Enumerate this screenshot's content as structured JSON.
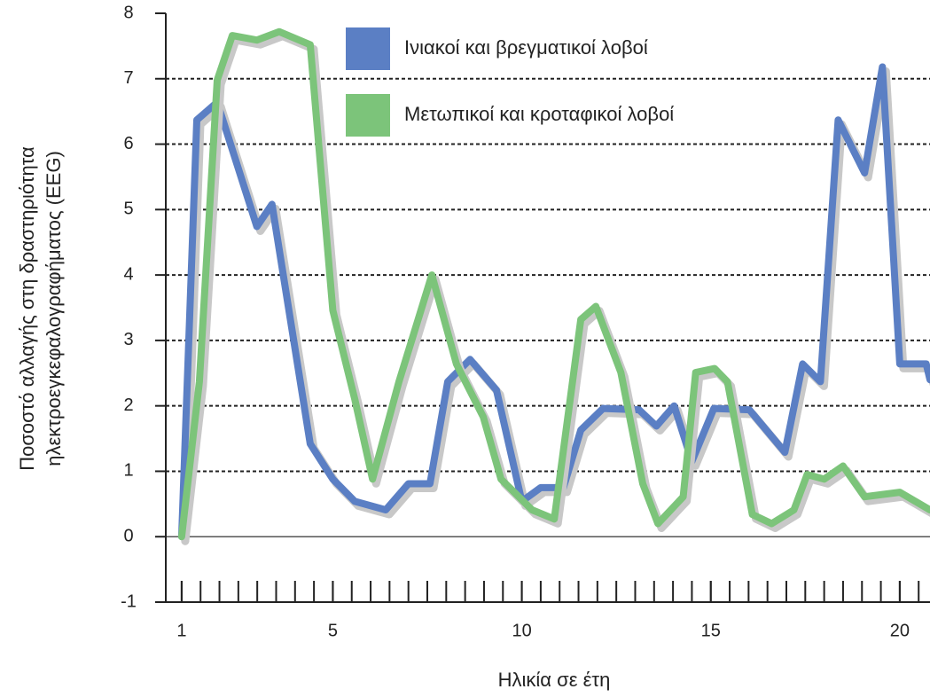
{
  "chart_data": {
    "type": "line",
    "x_label": "Ηλικία σε έτη",
    "y_label": [
      "Ποσοστό αλλαγής στη δραστηριότητα",
      "ηλεκτροεγκεφαλογραφήματος (EEG)"
    ],
    "xlim": [
      0.58,
      20.8
    ],
    "ylim": [
      -1,
      8
    ],
    "xticks": [
      1,
      5,
      10,
      15,
      20
    ],
    "xminorticks": [
      1,
      1.5,
      2,
      2.5,
      3,
      3.5,
      4,
      4.5,
      5,
      5.5,
      6,
      6.5,
      7,
      7.5,
      8,
      8.5,
      9,
      9.5,
      10,
      10.5,
      11,
      11.5,
      12,
      12.5,
      13,
      13.5,
      14,
      14.5,
      15,
      15.5,
      16,
      16.5,
      17,
      17.5,
      18,
      18.5,
      19,
      19.5,
      20,
      20.5
    ],
    "yticks": [
      -1,
      0,
      1,
      2,
      3,
      4,
      5,
      6,
      7,
      8
    ],
    "grid": true,
    "series": [
      {
        "name": "Ινιακοί και βρεγματικοί λοβοί",
        "color": "#5b7fc4",
        "x": [
          1.0,
          1.4,
          1.94,
          2.99,
          3.39,
          4.4,
          5.0,
          5.58,
          6.4,
          7.0,
          7.57,
          8.04,
          8.63,
          9.33,
          10.0,
          10.5,
          11.1,
          11.56,
          12.15,
          13.1,
          13.56,
          14.03,
          14.5,
          15.08,
          16.02,
          16.96,
          17.43,
          17.9,
          18.37,
          19.07,
          19.54,
          20.0,
          20.7,
          20.8
        ],
        "values": [
          0,
          6.37,
          6.64,
          4.74,
          5.08,
          1.42,
          0.88,
          0.54,
          0.41,
          0.81,
          0.81,
          2.37,
          2.71,
          2.24,
          0.54,
          0.75,
          0.75,
          1.63,
          1.96,
          1.94,
          1.69,
          2.0,
          1.15,
          1.96,
          1.94,
          1.29,
          2.64,
          2.37,
          6.37,
          5.56,
          7.18,
          2.64,
          2.64,
          2.4
        ]
      },
      {
        "name": "Μετωπικοί και κροταφικοί λοβοί",
        "color": "#7cc47a",
        "x": [
          1.0,
          1.47,
          1.94,
          2.34,
          2.99,
          3.58,
          4.4,
          5.0,
          5.58,
          6.05,
          6.75,
          7.62,
          8.27,
          8.98,
          9.45,
          10.27,
          10.86,
          11.56,
          11.96,
          12.62,
          13.2,
          13.6,
          14.27,
          14.6,
          15.1,
          15.44,
          16.1,
          16.61,
          17.2,
          17.55,
          18.0,
          18.5,
          19.07,
          20.0,
          20.8
        ],
        "values": [
          0,
          2.37,
          6.98,
          7.66,
          7.59,
          7.72,
          7.52,
          3.46,
          2.1,
          0.88,
          2.37,
          4.0,
          2.64,
          1.83,
          0.88,
          0.41,
          0.27,
          3.32,
          3.52,
          2.51,
          0.81,
          0.2,
          0.61,
          2.51,
          2.57,
          2.37,
          0.34,
          0.2,
          0.41,
          0.95,
          0.88,
          1.08,
          0.61,
          0.68,
          0.41
        ]
      }
    ]
  }
}
